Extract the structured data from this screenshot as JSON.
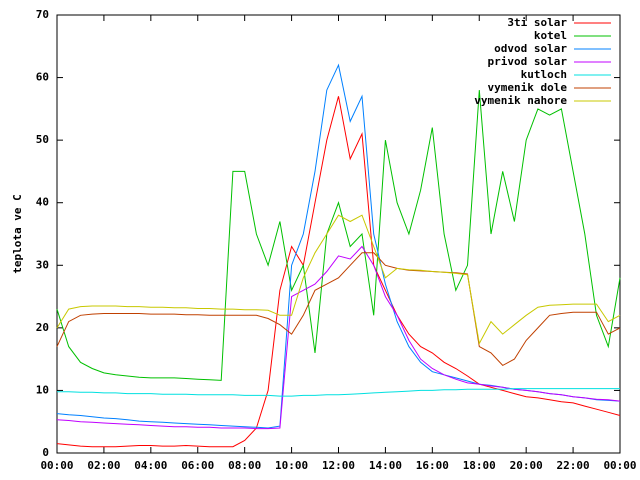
{
  "chart_data": {
    "type": "line",
    "y_label": "teplota ve C",
    "x": [
      0,
      0.5,
      1,
      1.5,
      2,
      2.5,
      3,
      3.5,
      4,
      4.5,
      5,
      5.5,
      6,
      6.5,
      7,
      7.5,
      8,
      8.5,
      9,
      9.5,
      10,
      10.5,
      11,
      11.5,
      12,
      12.5,
      13,
      13.5,
      14,
      14.5,
      15,
      15.5,
      16,
      16.5,
      17,
      17.5,
      18,
      18.5,
      19,
      19.5,
      20,
      20.5,
      21,
      21.5,
      22,
      22.5,
      23,
      23.5,
      24
    ],
    "xlim": [
      0,
      24
    ],
    "xticks": [
      {
        "value": 0,
        "label": "00:00"
      },
      {
        "value": 2,
        "label": "02:00"
      },
      {
        "value": 4,
        "label": "04:00"
      },
      {
        "value": 6,
        "label": "06:00"
      },
      {
        "value": 8,
        "label": "08:00"
      },
      {
        "value": 10,
        "label": "10:00"
      },
      {
        "value": 12,
        "label": "12:00"
      },
      {
        "value": 14,
        "label": "14:00"
      },
      {
        "value": 16,
        "label": "16:00"
      },
      {
        "value": 18,
        "label": "18:00"
      },
      {
        "value": 20,
        "label": "20:00"
      },
      {
        "value": 22,
        "label": "22:00"
      },
      {
        "value": 24,
        "label": "00:00"
      }
    ],
    "ylim": [
      0,
      70
    ],
    "yticks": [
      0,
      10,
      20,
      30,
      40,
      50,
      60,
      70
    ],
    "legend": "top-right",
    "series": [
      {
        "name": "3ti solar",
        "color": "#ff0000",
        "values": [
          1.5,
          1.3,
          1.1,
          1,
          1,
          1,
          1.1,
          1.2,
          1.2,
          1.1,
          1.1,
          1.2,
          1.1,
          1,
          1,
          1,
          2,
          4,
          10,
          26,
          33,
          30,
          40,
          50,
          57,
          47,
          51,
          30,
          26,
          22,
          19,
          17,
          16,
          14.5,
          13.5,
          12.3,
          11,
          10.5,
          10,
          9.5,
          9,
          8.8,
          8.5,
          8.2,
          8,
          7.5,
          7,
          6.5,
          6
        ]
      },
      {
        "name": "kotel",
        "color": "#00c000",
        "values": [
          23,
          17,
          14.5,
          13.5,
          12.8,
          12.5,
          12.3,
          12.1,
          12,
          12,
          12,
          11.9,
          11.8,
          11.7,
          11.6,
          45,
          45,
          35,
          30,
          37,
          26,
          30,
          16,
          35,
          40,
          33,
          35,
          22,
          50,
          40,
          35,
          42,
          52,
          35,
          26,
          30,
          58,
          35,
          45,
          37,
          50,
          55,
          54,
          55,
          45,
          35,
          22,
          17,
          28
        ]
      },
      {
        "name": "odvod solar",
        "color": "#0080ff",
        "values": [
          6.3,
          6.1,
          6,
          5.8,
          5.6,
          5.5,
          5.3,
          5.1,
          5,
          4.9,
          4.8,
          4.7,
          4.6,
          4.5,
          4.4,
          4.3,
          4.2,
          4.1,
          4,
          4.3,
          30,
          35,
          45,
          58,
          62,
          53,
          57,
          35,
          27,
          21,
          17,
          14.5,
          13,
          12.5,
          12,
          11.5,
          11,
          10.8,
          10.5,
          10.2,
          10,
          9.8,
          9.5,
          9.3,
          9,
          8.8,
          8.5,
          8.4,
          8.3
        ]
      },
      {
        "name": "privod solar",
        "color": "#c000ff",
        "values": [
          5.3,
          5.2,
          5,
          4.9,
          4.8,
          4.7,
          4.6,
          4.5,
          4.4,
          4.3,
          4.2,
          4.2,
          4.1,
          4.1,
          4,
          4,
          4,
          3.9,
          3.9,
          4,
          25,
          26,
          27,
          29,
          31.5,
          31,
          33,
          30,
          25,
          22,
          18,
          15,
          13.5,
          12.5,
          11.8,
          11.2,
          11,
          10.7,
          10.5,
          10.2,
          10,
          9.8,
          9.5,
          9.3,
          9,
          8.8,
          8.6,
          8.5,
          8.3
        ]
      },
      {
        "name": "kutloch",
        "color": "#00e0e0",
        "values": [
          9.8,
          9.8,
          9.7,
          9.7,
          9.6,
          9.6,
          9.5,
          9.5,
          9.5,
          9.4,
          9.4,
          9.4,
          9.3,
          9.3,
          9.3,
          9.3,
          9.2,
          9.2,
          9.2,
          9.1,
          9.1,
          9.2,
          9.2,
          9.3,
          9.3,
          9.4,
          9.5,
          9.6,
          9.7,
          9.8,
          9.9,
          10,
          10,
          10.1,
          10.1,
          10.2,
          10.2,
          10.2,
          10.2,
          10.3,
          10.3,
          10.3,
          10.3,
          10.3,
          10.3,
          10.3,
          10.3,
          10.3,
          10.3
        ]
      },
      {
        "name": "vymenik dole",
        "color": "#c04000",
        "values": [
          17,
          21,
          22,
          22.2,
          22.3,
          22.3,
          22.3,
          22.3,
          22.2,
          22.2,
          22.2,
          22.1,
          22.1,
          22,
          22,
          22,
          22,
          22,
          21.5,
          20.5,
          19,
          22,
          26,
          27,
          28,
          30,
          32,
          32,
          30,
          29.5,
          29.2,
          29.1,
          29,
          28.9,
          28.8,
          28.6,
          17,
          16,
          14,
          15,
          18,
          20,
          22,
          22.3,
          22.5,
          22.5,
          22.5,
          19,
          20
        ]
      },
      {
        "name": "vymenik nahore",
        "color": "#c8c800",
        "values": [
          20,
          23,
          23.4,
          23.5,
          23.5,
          23.5,
          23.4,
          23.4,
          23.3,
          23.3,
          23.2,
          23.2,
          23.1,
          23.1,
          23,
          23,
          22.9,
          22.9,
          22.8,
          22,
          22,
          28,
          32,
          35,
          38,
          37,
          38,
          33,
          28,
          29.5,
          29.3,
          29.2,
          29,
          28.9,
          28.7,
          28.5,
          17.5,
          21,
          19,
          20.5,
          22,
          23.3,
          23.6,
          23.7,
          23.8,
          23.8,
          23.8,
          21,
          22
        ]
      }
    ]
  }
}
